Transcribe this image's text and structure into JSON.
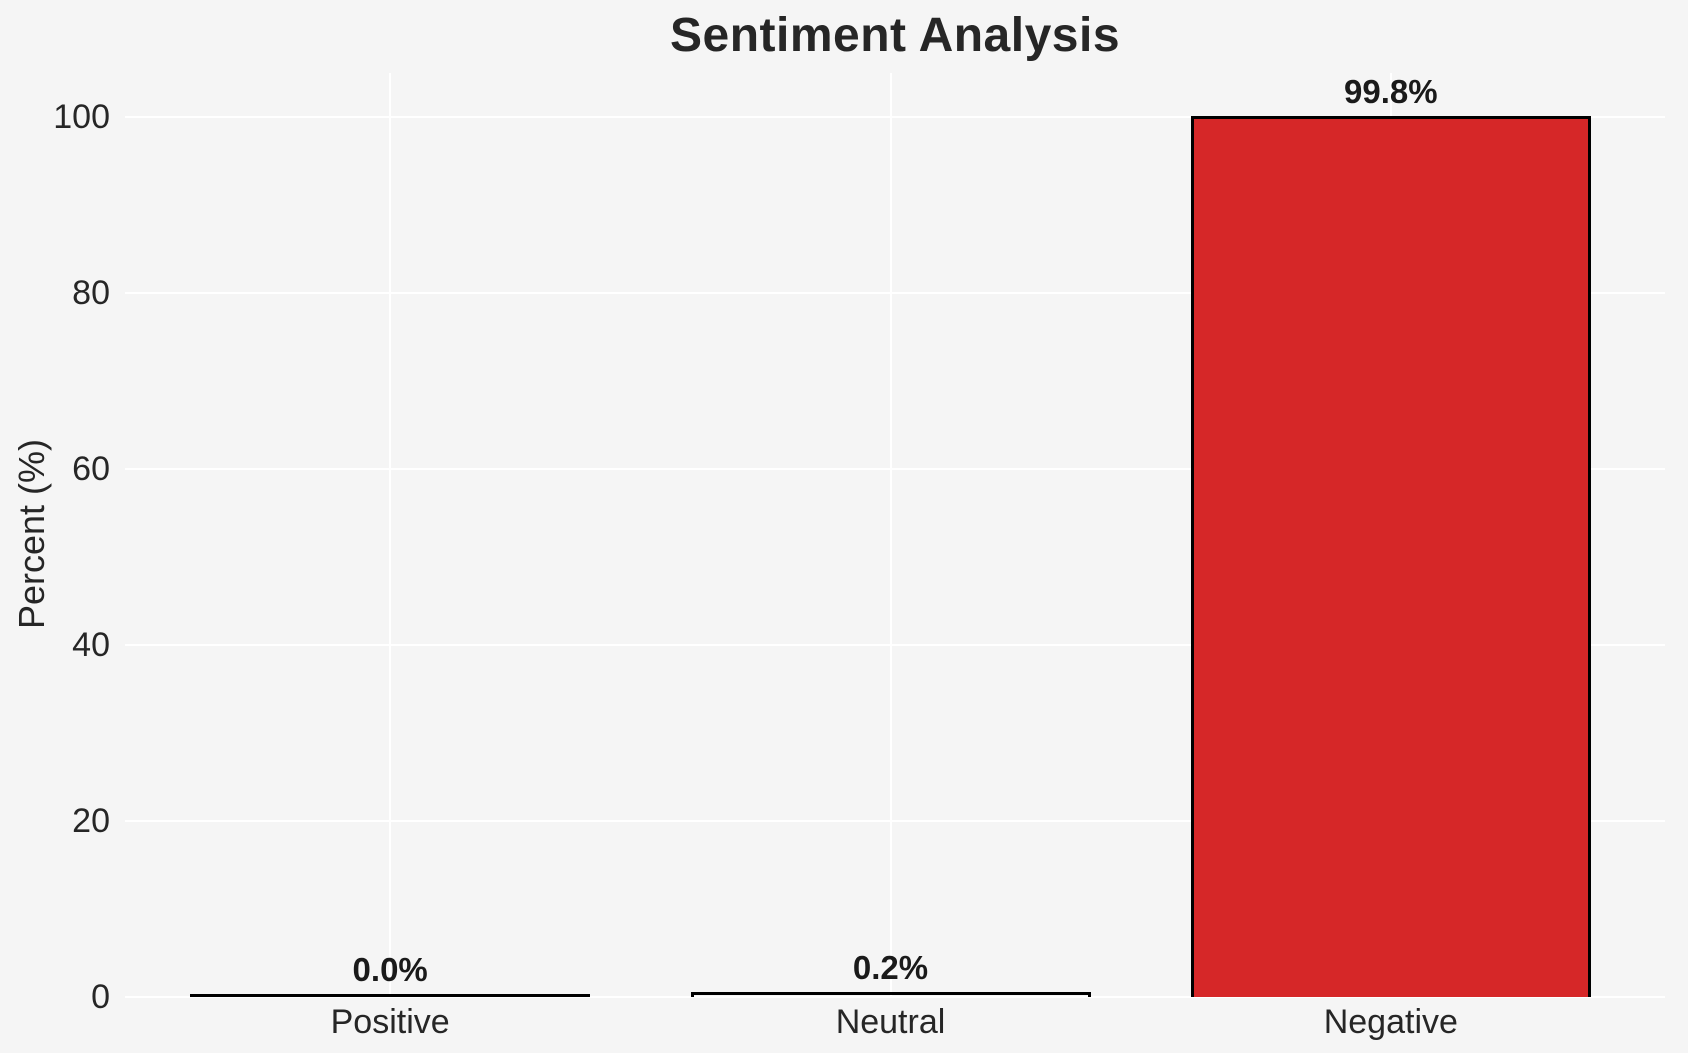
{
  "figure": {
    "background_color": "#f5f5f5",
    "gridline_color": "#ffffff",
    "text_color": "#262626",
    "bar_edge_color": "#000000"
  },
  "chart_data": {
    "type": "bar",
    "title": "Sentiment Analysis",
    "xlabel": "",
    "ylabel": "Percent (%)",
    "categories": [
      "Positive",
      "Neutral",
      "Negative"
    ],
    "values": [
      0.0,
      0.2,
      99.8
    ],
    "bar_labels": [
      "0.0%",
      "0.2%",
      "99.8%"
    ],
    "bar_colors": [
      null,
      null,
      "#d62728"
    ],
    "yticks": [
      0,
      20,
      40,
      60,
      80,
      100
    ],
    "ylim": [
      0,
      104.8
    ],
    "grid": "both",
    "legend": "none",
    "bar_edge_color": "#000000",
    "value_labels_position": "above-bar"
  }
}
